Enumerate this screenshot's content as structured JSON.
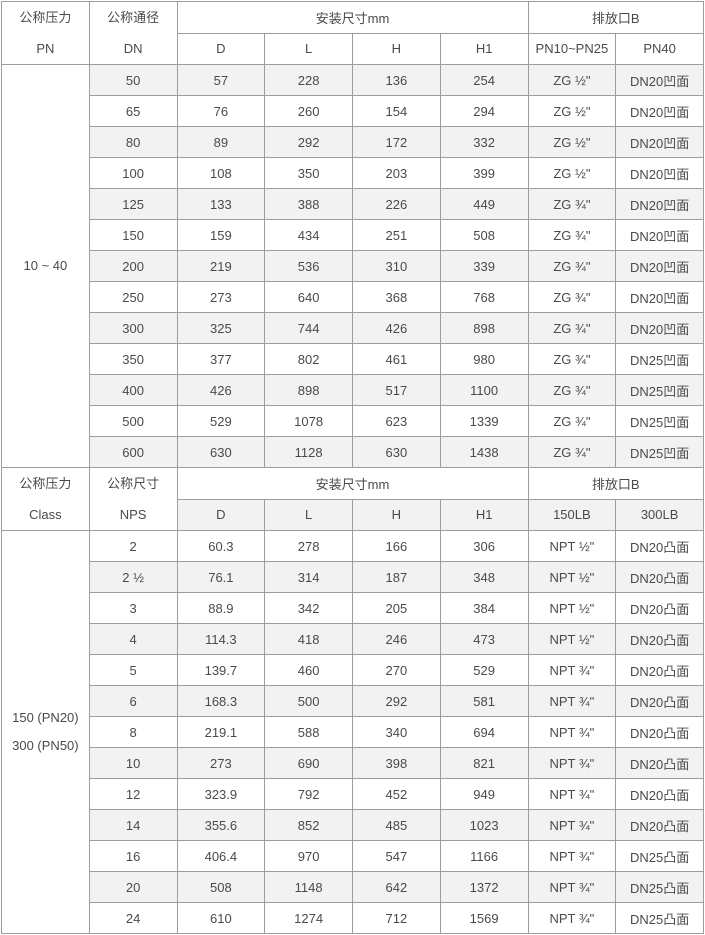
{
  "colors": {
    "border_outer": "#8f8f8f",
    "border_inner": "#9d9d9d",
    "row_shade": "#f2f2f2",
    "text": "#4a4a4a",
    "background": "#ffffff"
  },
  "table": {
    "sections": [
      {
        "header": {
          "pressure_label": "公称压力",
          "pressure_unit": "PN",
          "size_label": "公称通径",
          "size_unit": "DN",
          "dims_title": "安装尺寸mm",
          "drain_title": "排放口B",
          "dim_cols": [
            "D",
            "L",
            "H",
            "H1"
          ],
          "drain_cols": [
            "PN10~PN25",
            "PN40"
          ]
        },
        "pressure_value_lines": [
          "10 ~ 40"
        ],
        "rows": [
          [
            "50",
            "57",
            "228",
            "136",
            "254",
            "ZG ½\"",
            "DN20凹面"
          ],
          [
            "65",
            "76",
            "260",
            "154",
            "294",
            "ZG ½\"",
            "DN20凹面"
          ],
          [
            "80",
            "89",
            "292",
            "172",
            "332",
            "ZG ½\"",
            "DN20凹面"
          ],
          [
            "100",
            "108",
            "350",
            "203",
            "399",
            "ZG ½\"",
            "DN20凹面"
          ],
          [
            "125",
            "133",
            "388",
            "226",
            "449",
            "ZG ¾\"",
            "DN20凹面"
          ],
          [
            "150",
            "159",
            "434",
            "251",
            "508",
            "ZG ¾\"",
            "DN20凹面"
          ],
          [
            "200",
            "219",
            "536",
            "310",
            "339",
            "ZG ¾\"",
            "DN20凹面"
          ],
          [
            "250",
            "273",
            "640",
            "368",
            "768",
            "ZG ¾\"",
            "DN20凹面"
          ],
          [
            "300",
            "325",
            "744",
            "426",
            "898",
            "ZG ¾\"",
            "DN20凹面"
          ],
          [
            "350",
            "377",
            "802",
            "461",
            "980",
            "ZG ¾\"",
            "DN25凹面"
          ],
          [
            "400",
            "426",
            "898",
            "517",
            "1100",
            "ZG ¾\"",
            "DN25凹面"
          ],
          [
            "500",
            "529",
            "1078",
            "623",
            "1339",
            "ZG ¾\"",
            "DN25凹面"
          ],
          [
            "600",
            "630",
            "1128",
            "630",
            "1438",
            "ZG ¾\"",
            "DN25凹面"
          ]
        ]
      },
      {
        "header": {
          "pressure_label": "公称压力",
          "pressure_unit": "Class",
          "size_label": "公称尺寸",
          "size_unit": "NPS",
          "dims_title": "安装尺寸mm",
          "drain_title": "排放口B",
          "dim_cols": [
            "D",
            "L",
            "H",
            "H1"
          ],
          "drain_cols": [
            "150LB",
            "300LB"
          ]
        },
        "pressure_value_lines": [
          "150 (PN20)",
          "300 (PN50)"
        ],
        "rows": [
          [
            "2",
            "60.3",
            "278",
            "166",
            "306",
            "NPT ½\"",
            "DN20凸面"
          ],
          [
            "2 ½",
            "76.1",
            "314",
            "187",
            "348",
            "NPT ½\"",
            "DN20凸面"
          ],
          [
            "3",
            "88.9",
            "342",
            "205",
            "384",
            "NPT ½\"",
            "DN20凸面"
          ],
          [
            "4",
            "114.3",
            "418",
            "246",
            "473",
            "NPT ½\"",
            "DN20凸面"
          ],
          [
            "5",
            "139.7",
            "460",
            "270",
            "529",
            "NPT ¾\"",
            "DN20凸面"
          ],
          [
            "6",
            "168.3",
            "500",
            "292",
            "581",
            "NPT ¾\"",
            "DN20凸面"
          ],
          [
            "8",
            "219.1",
            "588",
            "340",
            "694",
            "NPT ¾\"",
            "DN20凸面"
          ],
          [
            "10",
            "273",
            "690",
            "398",
            "821",
            "NPT ¾\"",
            "DN20凸面"
          ],
          [
            "12",
            "323.9",
            "792",
            "452",
            "949",
            "NPT ¾\"",
            "DN20凸面"
          ],
          [
            "14",
            "355.6",
            "852",
            "485",
            "1023",
            "NPT ¾\"",
            "DN20凸面"
          ],
          [
            "16",
            "406.4",
            "970",
            "547",
            "1166",
            "NPT ¾\"",
            "DN25凸面"
          ],
          [
            "20",
            "508",
            "1148",
            "642",
            "1372",
            "NPT ¾\"",
            "DN25凸面"
          ],
          [
            "24",
            "610",
            "1274",
            "712",
            "1569",
            "NPT ¾\"",
            "DN25凸面"
          ]
        ]
      }
    ]
  }
}
